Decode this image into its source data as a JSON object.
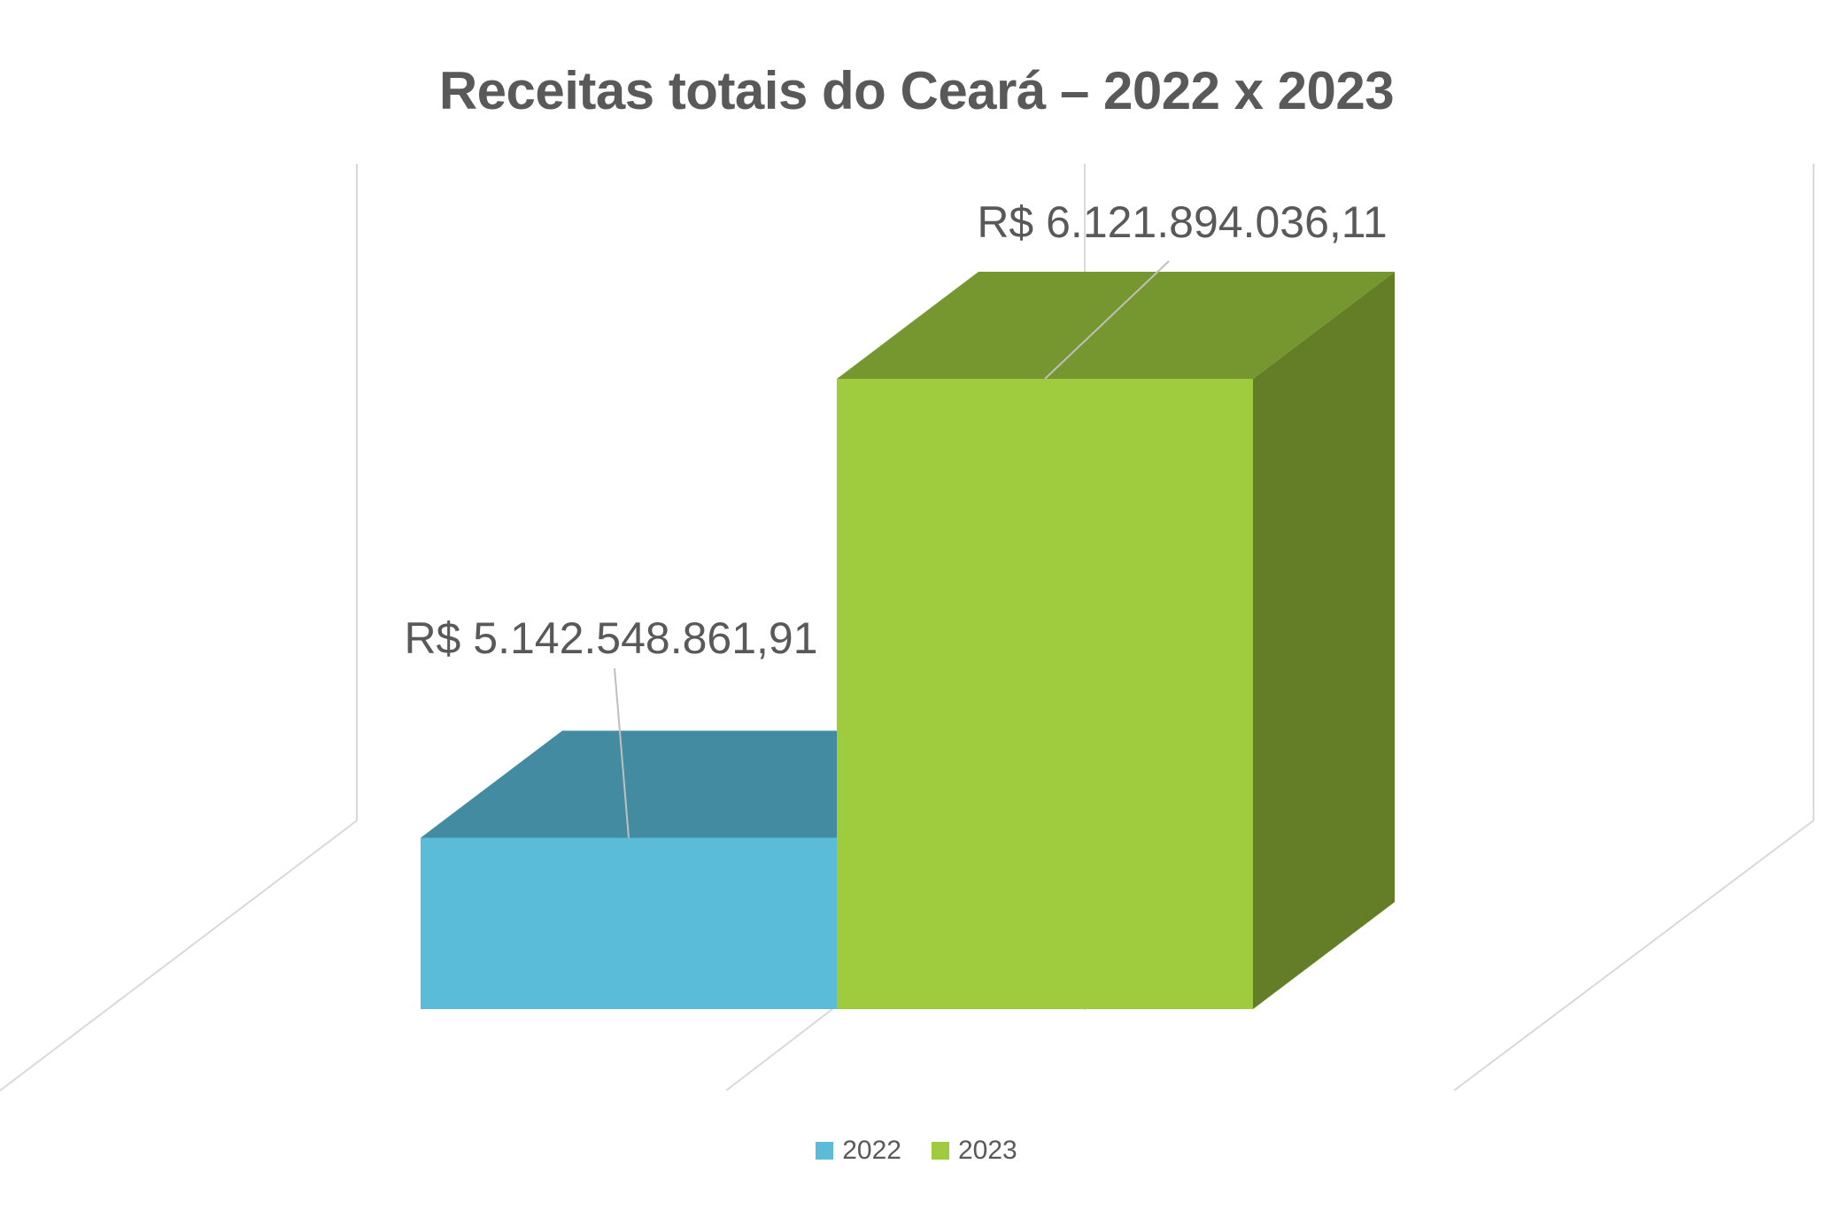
{
  "chart_data": {
    "type": "bar",
    "title": "Receitas totais do Ceará – 2022 x 2023",
    "categories": [
      ""
    ],
    "series": [
      {
        "name": "2022",
        "values": [
          5142548861.91
        ],
        "label": "R$ 5.142.548.861,91",
        "color": "#5BBCDA"
      },
      {
        "name": "2023",
        "values": [
          6121894036.11
        ],
        "label": "R$ 6.121.894.036,11",
        "color": "#9FCB3F"
      }
    ],
    "xlabel": "",
    "ylabel": "",
    "style": "3d",
    "grid": false,
    "legend": "bottom"
  }
}
